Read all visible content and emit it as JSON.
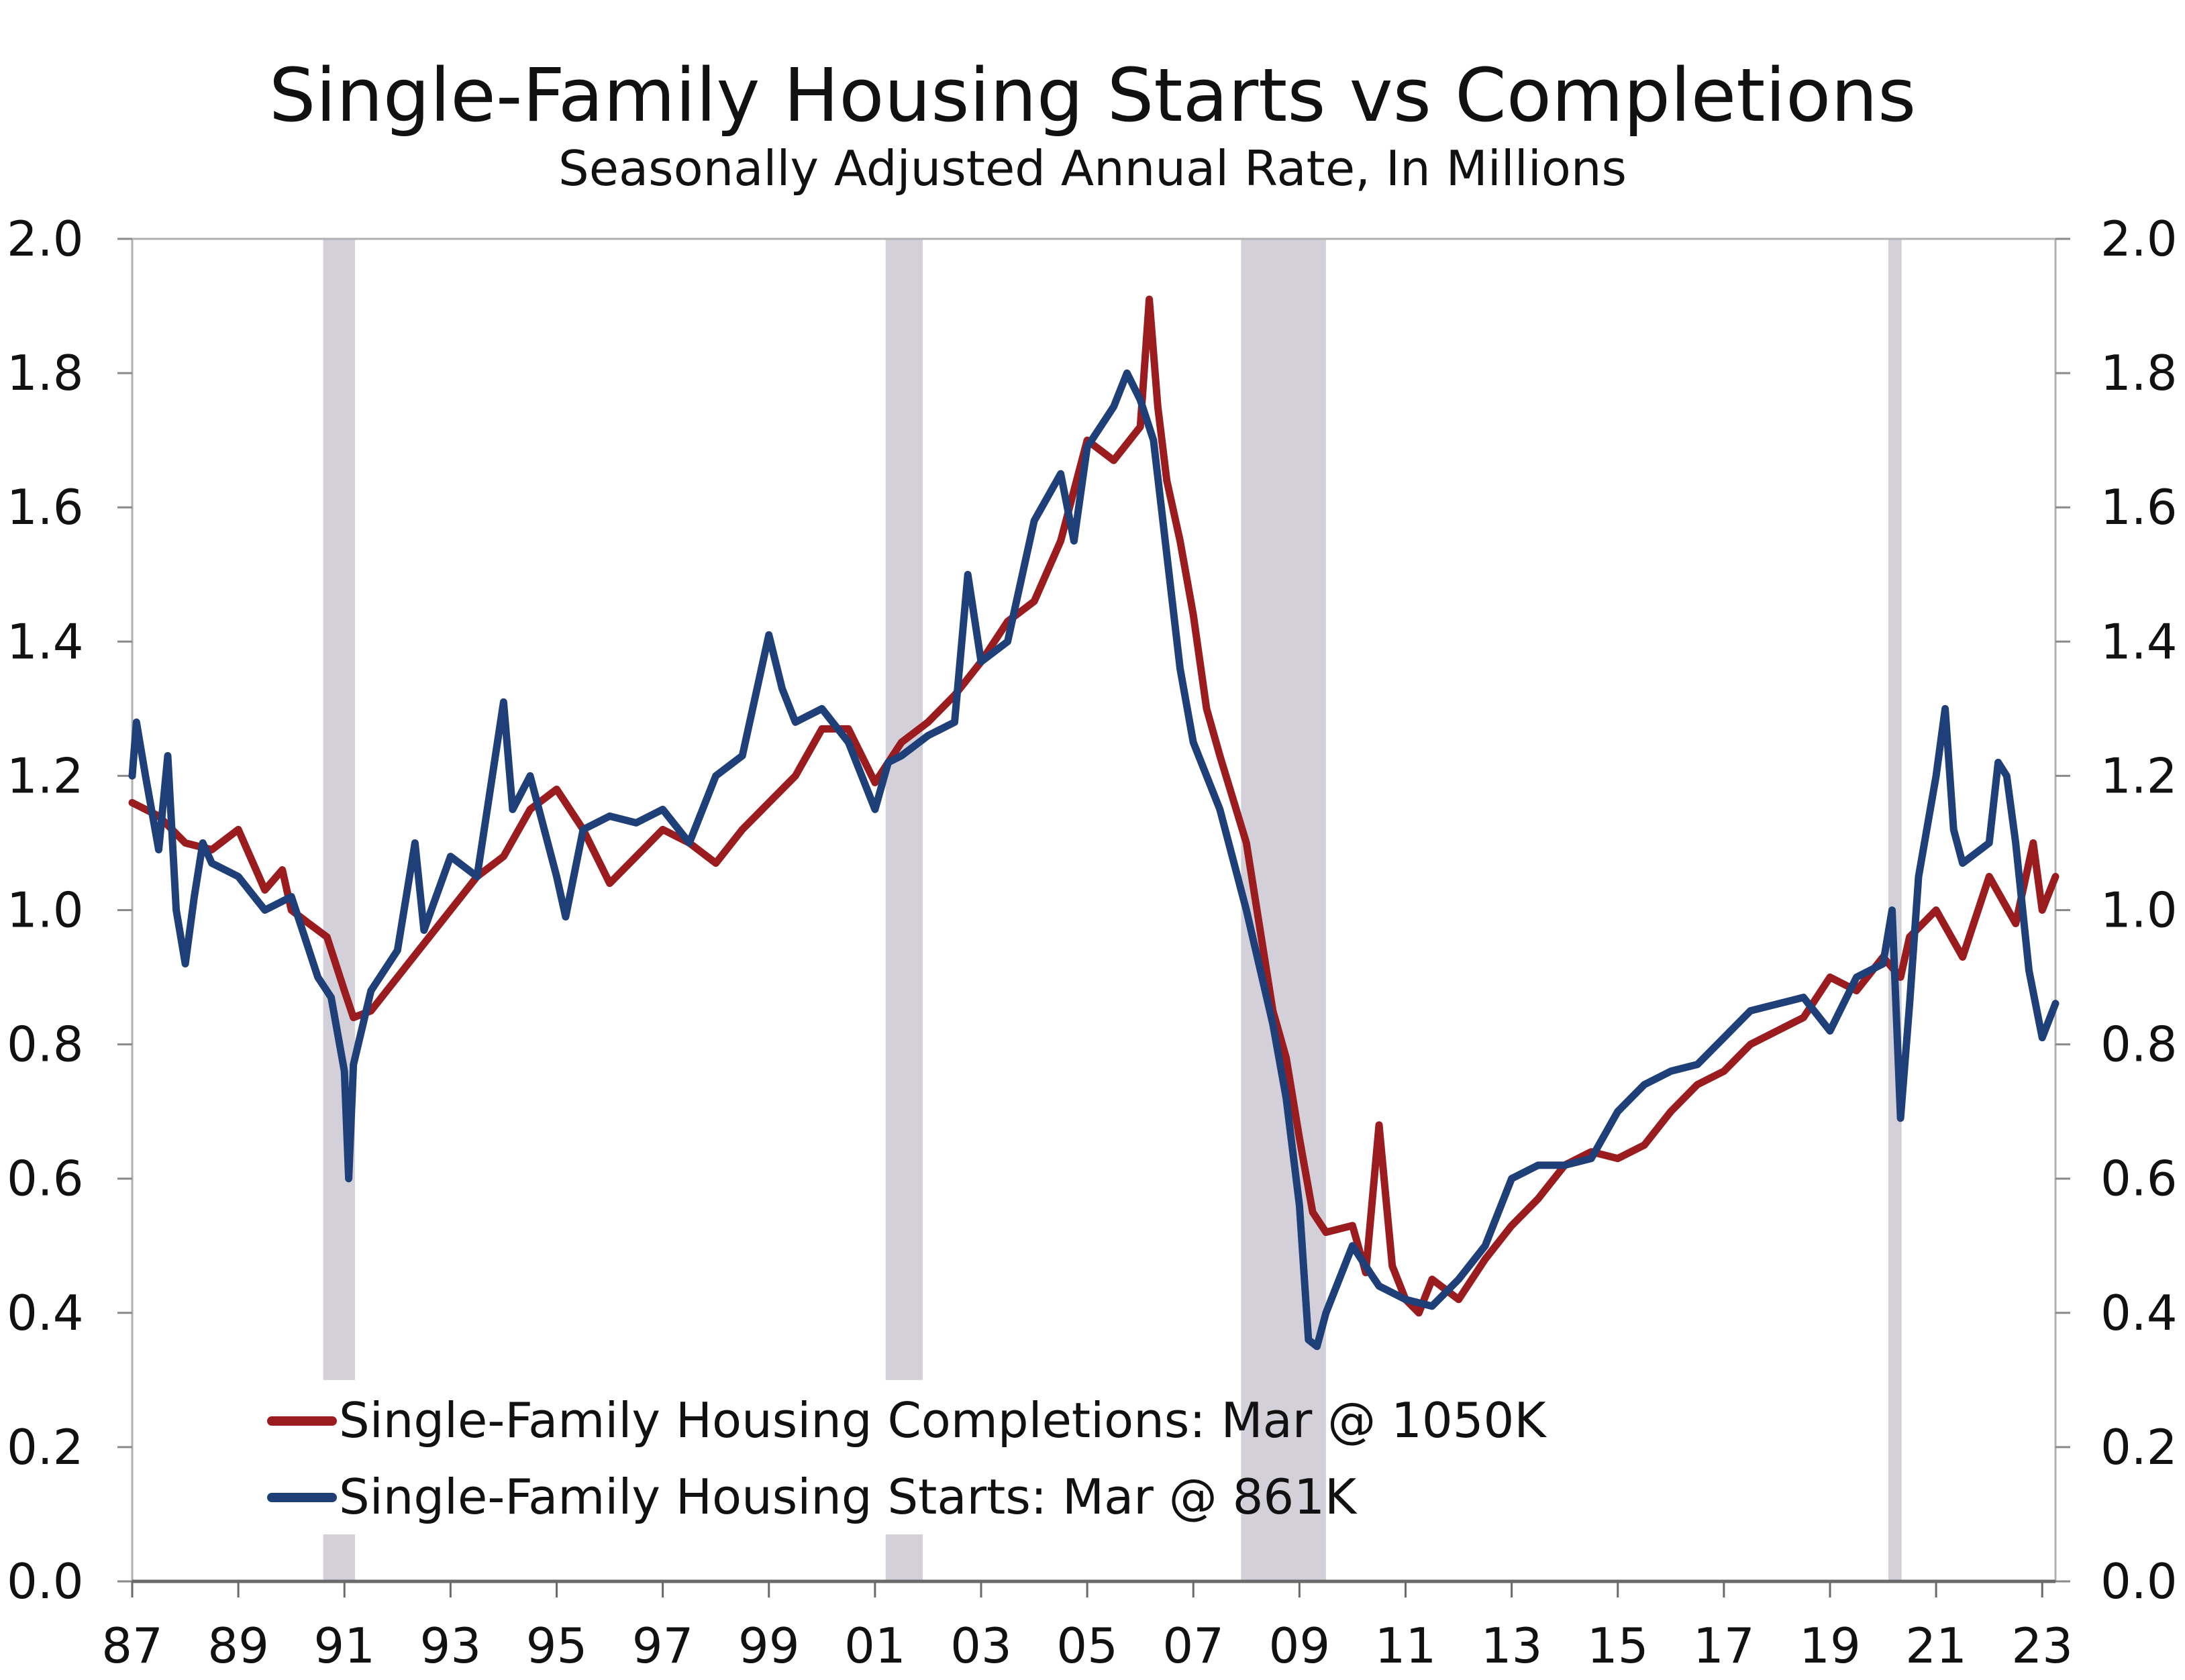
{
  "chart_data": {
    "type": "line",
    "title": "Single-Family Housing Starts vs Completions",
    "subtitle": "Seasonally Adjusted Annual Rate, In Millions",
    "xlabel": "",
    "ylabel": "",
    "xlim": [
      1987.0,
      2023.25
    ],
    "ylim": [
      0.0,
      2.0
    ],
    "grid": false,
    "x_ticks": [
      {
        "value": 1987,
        "label": "87"
      },
      {
        "value": 1989,
        "label": "89"
      },
      {
        "value": 1991,
        "label": "91"
      },
      {
        "value": 1993,
        "label": "93"
      },
      {
        "value": 1995,
        "label": "95"
      },
      {
        "value": 1997,
        "label": "97"
      },
      {
        "value": 1999,
        "label": "99"
      },
      {
        "value": 2001,
        "label": "01"
      },
      {
        "value": 2003,
        "label": "03"
      },
      {
        "value": 2005,
        "label": "05"
      },
      {
        "value": 2007,
        "label": "07"
      },
      {
        "value": 2009,
        "label": "09"
      },
      {
        "value": 2011,
        "label": "11"
      },
      {
        "value": 2013,
        "label": "13"
      },
      {
        "value": 2015,
        "label": "15"
      },
      {
        "value": 2017,
        "label": "17"
      },
      {
        "value": 2019,
        "label": "19"
      },
      {
        "value": 2021,
        "label": "21"
      },
      {
        "value": 2023,
        "label": "23"
      }
    ],
    "y_ticks": [
      {
        "value": 0.0,
        "label": "0.0"
      },
      {
        "value": 0.2,
        "label": "0.2"
      },
      {
        "value": 0.4,
        "label": "0.4"
      },
      {
        "value": 0.6,
        "label": "0.6"
      },
      {
        "value": 0.8,
        "label": "0.8"
      },
      {
        "value": 1.0,
        "label": "1.0"
      },
      {
        "value": 1.2,
        "label": "1.2"
      },
      {
        "value": 1.4,
        "label": "1.4"
      },
      {
        "value": 1.6,
        "label": "1.6"
      },
      {
        "value": 1.8,
        "label": "1.8"
      },
      {
        "value": 2.0,
        "label": "2.0"
      }
    ],
    "recessions": [
      {
        "start": 1990.6,
        "end": 1991.2
      },
      {
        "start": 2001.2,
        "end": 2001.9
      },
      {
        "start": 2007.9,
        "end": 2009.5
      },
      {
        "start": 2020.1,
        "end": 2020.35
      }
    ],
    "legend_position": "bottom-left",
    "series": [
      {
        "name": "Single-Family Housing Completions: Mar @ 1050K",
        "color": "#9b1c1f",
        "x": [
          1987.0,
          1987.5,
          1988.0,
          1988.5,
          1989.0,
          1989.5,
          1989.83,
          1990.0,
          1990.33,
          1990.67,
          1991.0,
          1991.17,
          1991.5,
          1992.0,
          1992.5,
          1993.0,
          1993.5,
          1994.0,
          1994.5,
          1995.0,
          1995.5,
          1996.0,
          1996.5,
          1997.0,
          1997.5,
          1998.0,
          1998.5,
          1999.0,
          1999.5,
          2000.0,
          2000.5,
          2001.0,
          2001.5,
          2002.0,
          2002.5,
          2003.0,
          2003.5,
          2004.0,
          2004.5,
          2005.0,
          2005.5,
          2006.0,
          2006.17,
          2006.33,
          2006.5,
          2006.75,
          2007.0,
          2007.25,
          2007.5,
          2008.0,
          2008.5,
          2008.75,
          2009.0,
          2009.25,
          2009.5,
          2010.0,
          2010.25,
          2010.5,
          2010.75,
          2011.0,
          2011.25,
          2011.5,
          2012.0,
          2012.5,
          2013.0,
          2013.5,
          2014.0,
          2014.5,
          2015.0,
          2015.5,
          2016.0,
          2016.5,
          2017.0,
          2017.5,
          2018.0,
          2018.5,
          2019.0,
          2019.5,
          2020.0,
          2020.33,
          2020.5,
          2021.0,
          2021.5,
          2022.0,
          2022.5,
          2022.83,
          2023.0,
          2023.25
        ],
        "values": [
          1.16,
          1.14,
          1.1,
          1.09,
          1.12,
          1.03,
          1.06,
          1.0,
          0.98,
          0.96,
          0.88,
          0.84,
          0.85,
          0.9,
          0.95,
          1.0,
          1.05,
          1.08,
          1.15,
          1.18,
          1.12,
          1.04,
          1.08,
          1.12,
          1.1,
          1.07,
          1.12,
          1.16,
          1.2,
          1.27,
          1.27,
          1.19,
          1.25,
          1.28,
          1.32,
          1.37,
          1.43,
          1.46,
          1.55,
          1.7,
          1.67,
          1.72,
          1.91,
          1.75,
          1.64,
          1.55,
          1.44,
          1.3,
          1.23,
          1.1,
          0.85,
          0.78,
          0.66,
          0.55,
          0.52,
          0.53,
          0.46,
          0.68,
          0.47,
          0.42,
          0.4,
          0.45,
          0.42,
          0.48,
          0.53,
          0.57,
          0.62,
          0.64,
          0.63,
          0.65,
          0.7,
          0.74,
          0.76,
          0.8,
          0.82,
          0.84,
          0.9,
          0.88,
          0.93,
          0.9,
          0.96,
          1.0,
          0.93,
          1.05,
          0.98,
          1.1,
          1.0,
          1.05
        ]
      },
      {
        "name": "Single-Family Housing Starts: Mar @ 861K",
        "color": "#1f3f78",
        "x": [
          1987.0,
          1987.08,
          1987.25,
          1987.5,
          1987.67,
          1987.83,
          1988.0,
          1988.17,
          1988.33,
          1988.5,
          1989.0,
          1989.5,
          1990.0,
          1990.25,
          1990.5,
          1990.75,
          1991.0,
          1991.08,
          1991.17,
          1991.5,
          1992.0,
          1992.33,
          1992.5,
          1993.0,
          1993.5,
          1994.0,
          1994.17,
          1994.5,
          1995.0,
          1995.17,
          1995.5,
          1996.0,
          1996.5,
          1997.0,
          1997.5,
          1998.0,
          1998.5,
          1999.0,
          1999.25,
          1999.5,
          2000.0,
          2000.5,
          2001.0,
          2001.25,
          2001.5,
          2002.0,
          2002.5,
          2002.75,
          2003.0,
          2003.5,
          2004.0,
          2004.5,
          2004.75,
          2005.0,
          2005.5,
          2005.75,
          2006.0,
          2006.25,
          2006.5,
          2006.75,
          2007.0,
          2007.5,
          2008.0,
          2008.5,
          2008.75,
          2009.0,
          2009.17,
          2009.33,
          2009.5,
          2010.0,
          2010.33,
          2010.5,
          2011.0,
          2011.5,
          2012.0,
          2012.5,
          2013.0,
          2013.5,
          2014.0,
          2014.5,
          2015.0,
          2015.5,
          2016.0,
          2016.5,
          2017.0,
          2017.5,
          2018.0,
          2018.5,
          2019.0,
          2019.5,
          2020.0,
          2020.17,
          2020.33,
          2020.5,
          2020.67,
          2021.0,
          2021.17,
          2021.33,
          2021.5,
          2022.0,
          2022.17,
          2022.33,
          2022.5,
          2022.75,
          2023.0,
          2023.25
        ],
        "values": [
          1.2,
          1.28,
          1.2,
          1.09,
          1.23,
          1.0,
          0.92,
          1.02,
          1.1,
          1.07,
          1.05,
          1.0,
          1.02,
          0.96,
          0.9,
          0.87,
          0.76,
          0.6,
          0.77,
          0.88,
          0.94,
          1.1,
          0.97,
          1.08,
          1.05,
          1.31,
          1.15,
          1.2,
          1.05,
          0.99,
          1.12,
          1.14,
          1.13,
          1.15,
          1.1,
          1.2,
          1.23,
          1.41,
          1.33,
          1.28,
          1.3,
          1.25,
          1.15,
          1.22,
          1.23,
          1.26,
          1.28,
          1.5,
          1.37,
          1.4,
          1.58,
          1.65,
          1.55,
          1.69,
          1.75,
          1.8,
          1.76,
          1.7,
          1.53,
          1.36,
          1.25,
          1.15,
          1.0,
          0.83,
          0.72,
          0.56,
          0.36,
          0.35,
          0.4,
          0.5,
          0.46,
          0.44,
          0.42,
          0.41,
          0.45,
          0.5,
          0.6,
          0.62,
          0.62,
          0.63,
          0.7,
          0.74,
          0.76,
          0.77,
          0.81,
          0.85,
          0.86,
          0.87,
          0.82,
          0.9,
          0.92,
          1.0,
          0.69,
          0.86,
          1.05,
          1.2,
          1.3,
          1.12,
          1.07,
          1.1,
          1.22,
          1.2,
          1.1,
          0.91,
          0.81,
          0.861
        ]
      }
    ]
  }
}
